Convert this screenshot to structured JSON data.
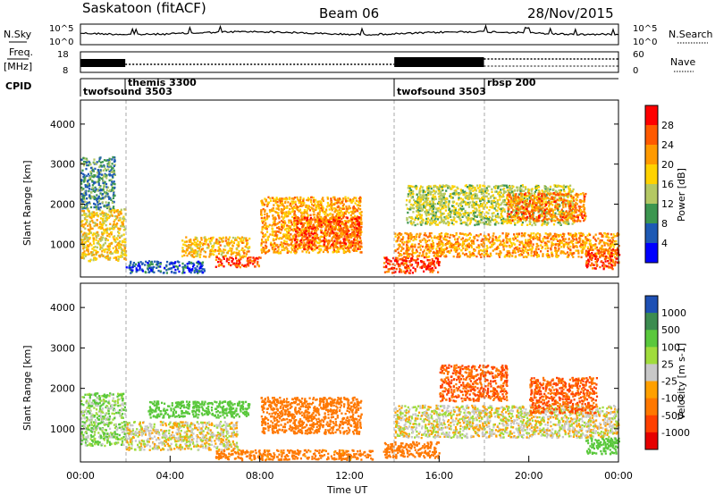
{
  "header": {
    "station": "Saskatoon (fitACF)",
    "beam": "Beam 06",
    "date": "28/Nov/2015"
  },
  "sky_panel": {
    "left_label": "N.Sky",
    "right_label": "N.Search",
    "left_ticks": [
      "10^5",
      "10^0"
    ],
    "right_ticks": [
      "10^5",
      "10^0"
    ]
  },
  "freq_panel": {
    "left_label_line1": "Freq.",
    "left_label_line2": "[MHz]",
    "left_ticks": [
      "18",
      "8"
    ],
    "right_ticks": [
      "60",
      "0"
    ],
    "right_label": "Nave"
  },
  "cpid_panel": {
    "label": "CPID",
    "modes": [
      {
        "name": "twofsound 3503",
        "start": 0.0
      },
      {
        "name": "themis 3300",
        "start": 2.0
      },
      {
        "name": "twofsound 3503",
        "start": 14.0
      },
      {
        "name": "rbsp 200",
        "start": 18.0
      }
    ]
  },
  "power_panel": {
    "ylabel": "Slant Range [km]",
    "colorbar_label": "Power [dB]",
    "colorbar_ticks": [
      "28",
      "24",
      "20",
      "16",
      "12",
      "8",
      "4"
    ],
    "colors": [
      "#ff0000",
      "#ff5a00",
      "#ff9a00",
      "#ffd200",
      "#b4c864",
      "#3c9650",
      "#1e5ab4",
      "#0000ff"
    ]
  },
  "velocity_panel": {
    "ylabel": "Slant Range [km]",
    "colorbar_label": "Velocity [m s-1]",
    "colorbar_ticks": [
      "1000",
      "500",
      "100",
      "25",
      "-25",
      "-100",
      "-500",
      "-1000"
    ],
    "colors": [
      "#1e50b4",
      "#3c8c50",
      "#5ac83c",
      "#a0dc3c",
      "#c8c8c8",
      "#ffa000",
      "#ff7800",
      "#ff4000",
      "#e60000"
    ]
  },
  "x_axis": {
    "label": "Time UT",
    "ticks": [
      "00:00",
      "04:00",
      "08:00",
      "12:00",
      "16:00",
      "20:00",
      "00:00"
    ]
  },
  "chart_data": [
    {
      "type": "heatmap",
      "title": "Power",
      "xlabel": "Time UT",
      "ylabel": "Slant Range [km]",
      "x_ticks": [
        "00:00",
        "04:00",
        "08:00",
        "12:00",
        "16:00",
        "20:00",
        "00:00"
      ],
      "y_ticks": [
        1000,
        2000,
        3000,
        4000
      ],
      "xlim_hours": [
        0,
        24
      ],
      "ylim": [
        180,
        4600
      ],
      "colorbar": {
        "label": "Power [dB]",
        "ticks": [
          4,
          8,
          12,
          16,
          20,
          24,
          28
        ]
      },
      "scatter_regions": [
        {
          "t0": 0.0,
          "t1": 2.0,
          "r0": 600,
          "r1": 1900,
          "p": 18
        },
        {
          "t0": 0.0,
          "t1": 1.5,
          "r0": 1900,
          "r1": 3200,
          "p": 9
        },
        {
          "t0": 2.0,
          "t1": 5.5,
          "r0": 300,
          "r1": 600,
          "p": 6
        },
        {
          "t0": 4.5,
          "t1": 7.5,
          "r0": 700,
          "r1": 1200,
          "p": 20
        },
        {
          "t0": 6.0,
          "t1": 8.0,
          "r0": 450,
          "r1": 700,
          "p": 27
        },
        {
          "t0": 8.0,
          "t1": 12.5,
          "r0": 800,
          "r1": 2200,
          "p": 21
        },
        {
          "t0": 9.5,
          "t1": 12.5,
          "r0": 900,
          "r1": 1700,
          "p": 26
        },
        {
          "t0": 13.5,
          "t1": 16.0,
          "r0": 300,
          "r1": 700,
          "p": 28
        },
        {
          "t0": 14.0,
          "t1": 24.0,
          "r0": 700,
          "r1": 1300,
          "p": 22
        },
        {
          "t0": 14.5,
          "t1": 22.0,
          "r0": 1500,
          "r1": 2500,
          "p": 15
        },
        {
          "t0": 19.0,
          "t1": 22.5,
          "r0": 1600,
          "r1": 2300,
          "p": 24
        },
        {
          "t0": 22.5,
          "t1": 24.0,
          "r0": 400,
          "r1": 900,
          "p": 27
        }
      ]
    },
    {
      "type": "heatmap",
      "title": "Velocity",
      "xlabel": "Time UT",
      "ylabel": "Slant Range [km]",
      "x_ticks": [
        "00:00",
        "04:00",
        "08:00",
        "12:00",
        "16:00",
        "20:00",
        "00:00"
      ],
      "y_ticks": [
        1000,
        2000,
        3000,
        4000
      ],
      "xlim_hours": [
        0,
        24
      ],
      "ylim": [
        180,
        4600
      ],
      "colorbar": {
        "label": "Velocity [m s-1]",
        "ticks": [
          1000,
          500,
          100,
          25,
          -25,
          -100,
          -500,
          -1000
        ]
      },
      "scatter_regions": [
        {
          "t0": 0.0,
          "t1": 2.0,
          "r0": 600,
          "r1": 1900,
          "v": 50
        },
        {
          "t0": 2.0,
          "t1": 7.0,
          "r0": 500,
          "r1": 1200,
          "v": 0
        },
        {
          "t0": 3.0,
          "t1": 7.5,
          "r0": 1300,
          "r1": 1700,
          "v": 150
        },
        {
          "t0": 6.0,
          "t1": 13.0,
          "r0": 250,
          "r1": 500,
          "v": -150
        },
        {
          "t0": 8.0,
          "t1": 12.5,
          "r0": 900,
          "r1": 1800,
          "v": -200
        },
        {
          "t0": 13.5,
          "t1": 16.0,
          "r0": 300,
          "r1": 700,
          "v": -200
        },
        {
          "t0": 14.0,
          "t1": 24.0,
          "r0": 800,
          "r1": 1600,
          "v": 0
        },
        {
          "t0": 16.0,
          "t1": 19.0,
          "r0": 1700,
          "r1": 2600,
          "v": -300
        },
        {
          "t0": 20.0,
          "t1": 23.0,
          "r0": 1400,
          "r1": 2300,
          "v": -300
        },
        {
          "t0": 22.5,
          "t1": 24.0,
          "r0": 400,
          "r1": 800,
          "v": 150
        }
      ]
    }
  ]
}
